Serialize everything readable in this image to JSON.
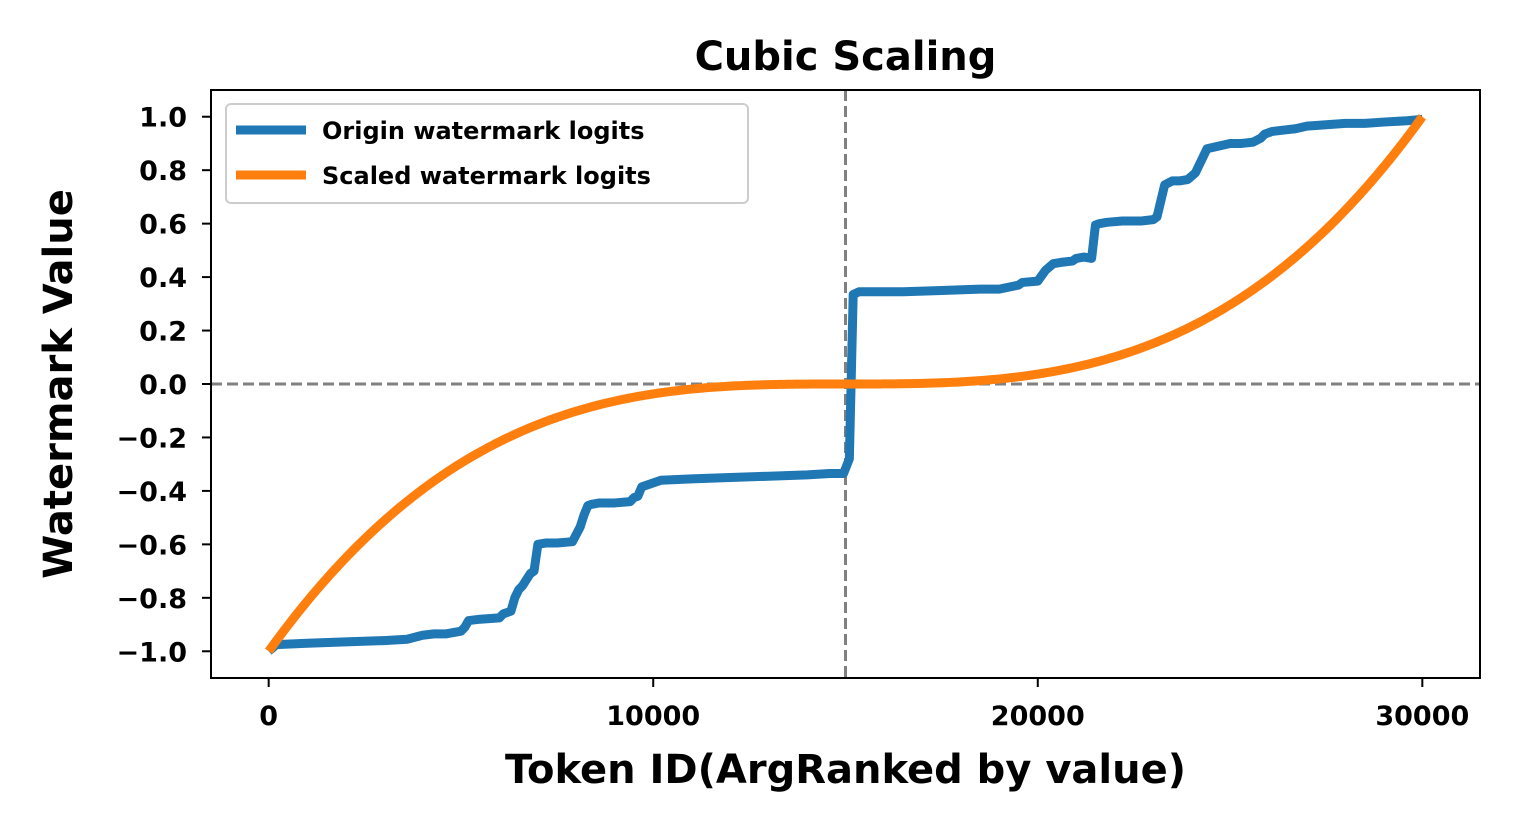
{
  "chart_data": {
    "type": "line",
    "title": "Cubic Scaling",
    "xlabel": "Token ID(ArgRanked by value)",
    "ylabel": "Watermark Value",
    "xlim": [
      -1500,
      31500
    ],
    "ylim": [
      -1.1,
      1.1
    ],
    "xticks": [
      0,
      10000,
      20000,
      30000
    ],
    "xtick_labels": [
      "0",
      "10000",
      "20000",
      "30000"
    ],
    "yticks": [
      1.0,
      0.8,
      0.6,
      0.4,
      0.2,
      0.0,
      -0.2,
      -0.4,
      -0.6,
      -0.8,
      -1.0
    ],
    "ytick_labels": [
      "1.0",
      "0.8",
      "0.6",
      "0.4",
      "0.2",
      "0.0",
      "−0.2",
      "−0.4",
      "−0.6",
      "−0.8",
      "−1.0"
    ],
    "grid": false,
    "legend_position": "top-left",
    "reference_lines": [
      {
        "orientation": "vertical",
        "value": 15000,
        "style": "dashed",
        "color": "#808080"
      },
      {
        "orientation": "horizontal",
        "value": 0.0,
        "style": "dashed",
        "color": "#808080"
      }
    ],
    "series": [
      {
        "name": "Origin watermark logits",
        "color": "#1f77b4",
        "x": [
          0,
          200,
          1000,
          2000,
          3000,
          3600,
          4000,
          4300,
          4600,
          5000,
          5100,
          5200,
          5500,
          6000,
          6100,
          6300,
          6400,
          6500,
          6600,
          6800,
          6900,
          7000,
          7200,
          7500,
          7900,
          8100,
          8200,
          8300,
          8400,
          8600,
          9000,
          9400,
          9500,
          9600,
          9700,
          9900,
          10200,
          11000,
          12000,
          13000,
          14000,
          14600,
          14950,
          15100,
          15200,
          15350,
          15600,
          16500,
          17500,
          18500,
          19000,
          19500,
          19600,
          20000,
          20200,
          20400,
          20600,
          20900,
          21000,
          21200,
          21400,
          21500,
          21600,
          21800,
          22200,
          22700,
          23000,
          23100,
          23300,
          23500,
          23700,
          23900,
          24100,
          24300,
          24400,
          24700,
          25000,
          25300,
          25600,
          25800,
          25900,
          26100,
          26400,
          26700,
          27000,
          27500,
          28000,
          28500,
          29000,
          29600,
          30000
        ],
        "y": [
          -1.0,
          -0.975,
          -0.97,
          -0.965,
          -0.96,
          -0.955,
          -0.94,
          -0.935,
          -0.935,
          -0.925,
          -0.91,
          -0.885,
          -0.88,
          -0.875,
          -0.86,
          -0.85,
          -0.8,
          -0.77,
          -0.755,
          -0.71,
          -0.7,
          -0.6,
          -0.595,
          -0.595,
          -0.59,
          -0.535,
          -0.49,
          -0.455,
          -0.45,
          -0.445,
          -0.445,
          -0.44,
          -0.425,
          -0.42,
          -0.385,
          -0.375,
          -0.36,
          -0.355,
          -0.35,
          -0.345,
          -0.34,
          -0.335,
          -0.335,
          -0.28,
          0.335,
          0.345,
          0.345,
          0.345,
          0.35,
          0.355,
          0.355,
          0.37,
          0.38,
          0.385,
          0.425,
          0.45,
          0.455,
          0.46,
          0.47,
          0.475,
          0.47,
          0.595,
          0.6,
          0.605,
          0.61,
          0.61,
          0.615,
          0.625,
          0.745,
          0.76,
          0.76,
          0.765,
          0.79,
          0.85,
          0.88,
          0.89,
          0.9,
          0.9,
          0.905,
          0.92,
          0.935,
          0.945,
          0.95,
          0.955,
          0.965,
          0.97,
          0.975,
          0.975,
          0.98,
          0.985,
          0.99
        ]
      },
      {
        "name": "Scaled watermark logits",
        "color": "#ff7f0e",
        "formula": "y = ((x - 15000) / 15000)^3",
        "x_range": [
          0,
          30000
        ]
      }
    ]
  }
}
